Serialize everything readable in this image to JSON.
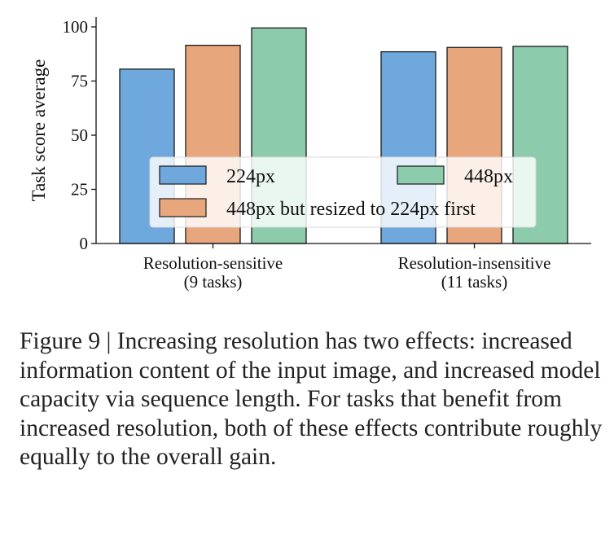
{
  "chart_data": {
    "type": "bar",
    "categories": [
      "Resolution-sensitive\n(9 tasks)",
      "Resolution-insensitive\n(11 tasks)"
    ],
    "series": [
      {
        "name": "224px",
        "values": [
          80.5,
          88.5
        ],
        "color": "#6fa8dc"
      },
      {
        "name": "448px but resized to 224px first",
        "values": [
          91.5,
          90.5
        ],
        "color": "#e8a67d"
      },
      {
        "name": "448px",
        "values": [
          99.5,
          91.0
        ],
        "color": "#8ccbab"
      }
    ],
    "title": "",
    "xlabel": "",
    "ylabel": "Task score average",
    "ylim": [
      0,
      100
    ],
    "yticks": [
      "0",
      "25",
      "50",
      "75",
      "100"
    ],
    "grid": false,
    "legend_position": "lower-center"
  },
  "caption": {
    "text": "Figure 9 | Increasing resolution has two effects: increased information content of the input image, and increased model capacity via sequence length. For tasks that benefit from increased resolution, both of these effects contribute roughly equally to the overall gain."
  }
}
